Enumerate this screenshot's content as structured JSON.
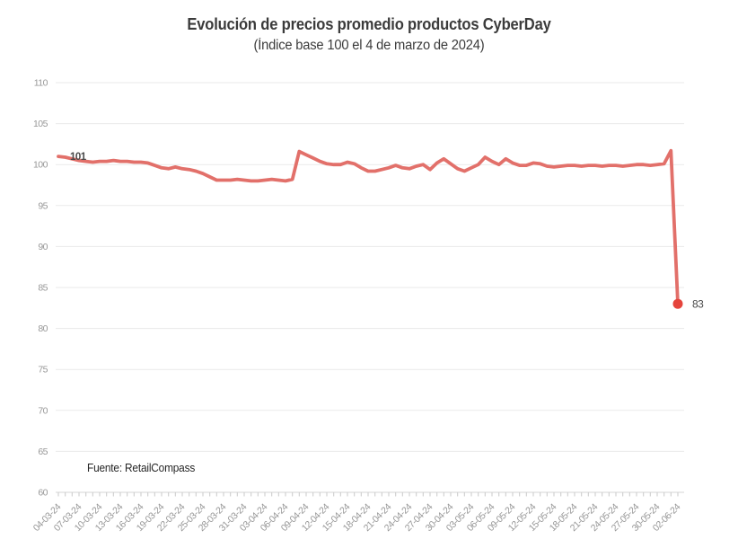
{
  "chart_data": {
    "type": "line",
    "title": "Evolución de precios promedio productos CyberDay",
    "subtitle": "(Índice base 100 el 4 de marzo de 2024)",
    "source": "Fuente: RetailCompass",
    "xlabel": "",
    "ylabel": "",
    "ylim": [
      60,
      110
    ],
    "y_tick_step": 5,
    "x_tick_every": 3,
    "grid": "horizontal",
    "legend": "none",
    "annotations": {
      "first_point_label": "101",
      "last_point_label": "83"
    },
    "colors": {
      "line": "#e2706a",
      "end_dot": "#e5443c",
      "grid": "#eaeaea",
      "axis": "#d6d6d6",
      "tick": "#c9c9c9",
      "tick_label": "#979797",
      "annotation": "#4a4a4a"
    },
    "x": [
      "04-03-24",
      "05-03-24",
      "06-03-24",
      "07-03-24",
      "08-03-24",
      "09-03-24",
      "10-03-24",
      "11-03-24",
      "12-03-24",
      "13-03-24",
      "14-03-24",
      "15-03-24",
      "16-03-24",
      "17-03-24",
      "18-03-24",
      "19-03-24",
      "20-03-24",
      "21-03-24",
      "22-03-24",
      "23-03-24",
      "24-03-24",
      "25-03-24",
      "26-03-24",
      "27-03-24",
      "28-03-24",
      "29-03-24",
      "30-03-24",
      "31-03-24",
      "01-04-24",
      "02-04-24",
      "03-04-24",
      "04-04-24",
      "05-04-24",
      "06-04-24",
      "07-04-24",
      "08-04-24",
      "09-04-24",
      "10-04-24",
      "11-04-24",
      "12-04-24",
      "13-04-24",
      "14-04-24",
      "15-04-24",
      "16-04-24",
      "17-04-24",
      "18-04-24",
      "19-04-24",
      "20-04-24",
      "21-04-24",
      "22-04-24",
      "23-04-24",
      "24-04-24",
      "25-04-24",
      "26-04-24",
      "27-04-24",
      "28-04-24",
      "29-04-24",
      "30-04-24",
      "01-05-24",
      "02-05-24",
      "03-05-24",
      "04-05-24",
      "05-05-24",
      "06-05-24",
      "07-05-24",
      "08-05-24",
      "09-05-24",
      "10-05-24",
      "11-05-24",
      "12-05-24",
      "13-05-24",
      "14-05-24",
      "15-05-24",
      "16-05-24",
      "17-05-24",
      "18-05-24",
      "19-05-24",
      "20-05-24",
      "21-05-24",
      "22-05-24",
      "23-05-24",
      "24-05-24",
      "25-05-24",
      "26-05-24",
      "27-05-24",
      "28-05-24",
      "29-05-24",
      "30-05-24",
      "31-05-24",
      "01-06-24",
      "02-06-24"
    ],
    "values": [
      101.0,
      100.9,
      100.7,
      100.5,
      100.4,
      100.3,
      100.4,
      100.4,
      100.5,
      100.4,
      100.4,
      100.3,
      100.3,
      100.2,
      99.9,
      99.6,
      99.5,
      99.7,
      99.5,
      99.4,
      99.2,
      98.9,
      98.5,
      98.1,
      98.1,
      98.1,
      98.2,
      98.1,
      98.0,
      98.0,
      98.1,
      98.2,
      98.1,
      98.0,
      98.2,
      101.6,
      101.2,
      100.8,
      100.4,
      100.1,
      100.0,
      100.0,
      100.3,
      100.1,
      99.6,
      99.2,
      99.2,
      99.4,
      99.6,
      99.9,
      99.6,
      99.5,
      99.8,
      100.0,
      99.4,
      100.2,
      100.7,
      100.1,
      99.5,
      99.2,
      99.6,
      100.0,
      100.9,
      100.4,
      100.0,
      100.7,
      100.2,
      99.9,
      99.9,
      100.2,
      100.1,
      99.8,
      99.7,
      99.8,
      99.9,
      99.9,
      99.8,
      99.9,
      99.9,
      99.8,
      99.9,
      99.9,
      99.8,
      99.9,
      100.0,
      100.0,
      99.9,
      100.0,
      100.1,
      101.7,
      83.0
    ]
  }
}
